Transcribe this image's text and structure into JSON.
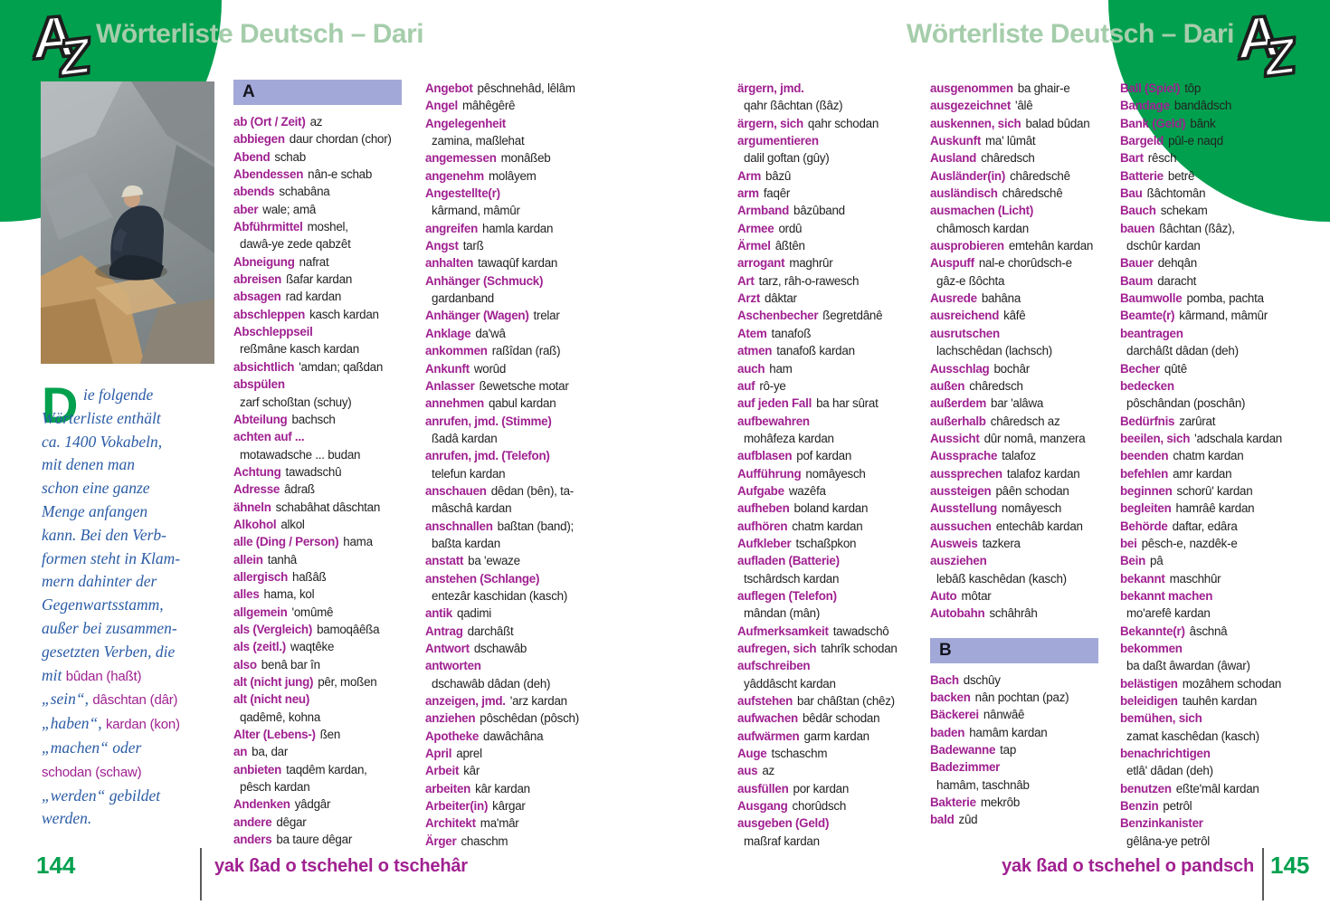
{
  "header": {
    "title": "Wörterliste Deutsch – Dari",
    "logo_top_letter": "A",
    "logo_bottom_letter": "Z"
  },
  "colors": {
    "brand_green": "#00a04e",
    "title_pale_green": "#a5cdab",
    "headword_magenta": "#a02191",
    "section_bar_blue": "#a2a9d8",
    "intro_blue": "#2b5ca6"
  },
  "intro": {
    "drop_cap": "D",
    "lines": [
      [
        {
          "t": "ie folgende",
          "s": "it"
        }
      ],
      [
        {
          "t": "Wörterliste enthält",
          "s": "it"
        }
      ],
      [
        {
          "t": "ca. 1400 Vokabeln,",
          "s": "it"
        }
      ],
      [
        {
          "t": "mit denen man",
          "s": "it"
        }
      ],
      [
        {
          "t": "schon eine ganze",
          "s": "it"
        }
      ],
      [
        {
          "t": "Menge anfangen",
          "s": "it"
        }
      ],
      [
        {
          "t": "kann. Bei den Verb-",
          "s": "it"
        }
      ],
      [
        {
          "t": "formen steht in Klam-",
          "s": "it"
        }
      ],
      [
        {
          "t": "mern dahinter der",
          "s": "it"
        }
      ],
      [
        {
          "t": "Gegenwartsstamm,",
          "s": "it"
        }
      ],
      [
        {
          "t": "außer bei zusammen-",
          "s": "it"
        }
      ],
      [
        {
          "t": "gesetzten Verben, die",
          "s": "it"
        }
      ],
      [
        {
          "t": "mit ",
          "s": "it"
        },
        {
          "t": "bûdan (haßt)",
          "s": "ma"
        }
      ],
      [
        {
          "t": "„sein“, ",
          "s": "it"
        },
        {
          "t": "dâschtan (dâr)",
          "s": "ma"
        }
      ],
      [
        {
          "t": "„haben“, ",
          "s": "it"
        },
        {
          "t": "kardan (kon)",
          "s": "ma"
        }
      ],
      [
        {
          "t": "„machen“ oder",
          "s": "it"
        }
      ],
      [
        {
          "t": "schodan (schaw)",
          "s": "ma"
        }
      ],
      [
        {
          "t": "„werden“ gebildet",
          "s": "it"
        }
      ],
      [
        {
          "t": "werden.",
          "s": "it"
        }
      ]
    ]
  },
  "columns": [
    {
      "lines": [
        {
          "s": "A"
        },
        {
          "h": "ab (Ort / Zeit)",
          "t": "az"
        },
        {
          "h": "abbiegen",
          "t": "daur chordan (chor)"
        },
        {
          "h": "Abend",
          "t": "schab"
        },
        {
          "h": "Abendessen",
          "t": "nân-e schab"
        },
        {
          "h": "abends",
          "t": "schabâna"
        },
        {
          "h": "aber",
          "t": "wale; amâ"
        },
        {
          "h": "Abführmittel",
          "t": "moshel,"
        },
        {
          "c": "dawâ-ye zede qabzêt"
        },
        {
          "h": "Abneigung",
          "t": "nafrat"
        },
        {
          "h": "abreisen",
          "t": "ßafar kardan"
        },
        {
          "h": "absagen",
          "t": "rad kardan"
        },
        {
          "h": "abschleppen",
          "t": "kasch kardan"
        },
        {
          "h": "Abschleppseil"
        },
        {
          "c": "reßmâne kasch kardan"
        },
        {
          "h": "absichtlich",
          "t": "'amdan; qaßdan"
        },
        {
          "h": "abspülen"
        },
        {
          "c": "zarf schoßtan (schuy)"
        },
        {
          "h": "Abteilung",
          "t": "bachsch"
        },
        {
          "h": "achten auf ..."
        },
        {
          "c": "motawadsche ... budan"
        },
        {
          "h": "Achtung",
          "t": "tawadschû"
        },
        {
          "h": "Adresse",
          "t": "âdraß"
        },
        {
          "h": "ähneln",
          "t": "schabâhat dâschtan"
        },
        {
          "h": "Alkohol",
          "t": "alkol"
        },
        {
          "h": "alle (Ding / Person)",
          "t": "hama"
        },
        {
          "h": "allein",
          "t": "tanhâ"
        },
        {
          "h": "allergisch",
          "t": "haßâß"
        },
        {
          "h": "alles",
          "t": "hama, kol"
        },
        {
          "h": "allgemein",
          "t": "'omûmê"
        },
        {
          "h": "als (Vergleich)",
          "t": "bamoqâêßa"
        },
        {
          "h": "als (zeitl.)",
          "t": "waqtêke"
        },
        {
          "h": "also",
          "t": "benâ bar în"
        },
        {
          "h": "alt (nicht jung)",
          "t": "pêr, moßen"
        },
        {
          "h": "alt (nicht neu)"
        },
        {
          "c": "qadêmê, kohna"
        },
        {
          "h": "Alter (Lebens-)",
          "t": "ßen"
        },
        {
          "h": "an",
          "t": "ba, dar"
        },
        {
          "h": "anbieten",
          "t": "taqdêm kardan,"
        },
        {
          "c": "pêsch kardan"
        },
        {
          "h": "Andenken",
          "t": "yâdgâr"
        },
        {
          "h": "andere",
          "t": "dêgar"
        },
        {
          "h": "anders",
          "t": "ba taure dêgar"
        }
      ]
    },
    {
      "lines": [
        {
          "h": "Angebot",
          "t": "pêschnehâd, lêlâm"
        },
        {
          "h": "Angel",
          "t": "mâhêgêrê"
        },
        {
          "h": "Angelegenheit"
        },
        {
          "c": "zamina, maßlehat"
        },
        {
          "h": "angemessen",
          "t": "monâßeb"
        },
        {
          "h": "angenehm",
          "t": "molâyem"
        },
        {
          "h": "Angestellte(r)"
        },
        {
          "c": "kârmand, mâmûr"
        },
        {
          "h": "angreifen",
          "t": "hamla kardan"
        },
        {
          "h": "Angst",
          "t": "tarß"
        },
        {
          "h": "anhalten",
          "t": "tawaqûf kardan"
        },
        {
          "h": "Anhänger (Schmuck)"
        },
        {
          "c": "gardanband"
        },
        {
          "h": "Anhänger (Wagen)",
          "t": "trelar"
        },
        {
          "h": "Anklage",
          "t": "da'wâ"
        },
        {
          "h": "ankommen",
          "t": "raßîdan (raß)"
        },
        {
          "h": "Ankunft",
          "t": "worûd"
        },
        {
          "h": "Anlasser",
          "t": "ßewetsche motar"
        },
        {
          "h": "annehmen",
          "t": "qabul kardan"
        },
        {
          "h": "anrufen, jmd. (Stimme)"
        },
        {
          "c": "ßadâ kardan"
        },
        {
          "h": "anrufen, jmd. (Telefon)"
        },
        {
          "c": "telefun kardan"
        },
        {
          "h": "anschauen",
          "t": "dêdan (bên), ta-"
        },
        {
          "c": "mâschâ kardan"
        },
        {
          "h": "anschnallen",
          "t": "baßtan (band);"
        },
        {
          "c": "baßta kardan"
        },
        {
          "h": "anstatt",
          "t": "ba 'ewaze"
        },
        {
          "h": "anstehen (Schlange)"
        },
        {
          "c": "entezâr kaschidan (kasch)"
        },
        {
          "h": "antik",
          "t": "qadimi"
        },
        {
          "h": "Antrag",
          "t": "darchâßt"
        },
        {
          "h": "Antwort",
          "t": "dschawâb"
        },
        {
          "h": "antworten"
        },
        {
          "c": "dschawâb dâdan (deh)"
        },
        {
          "h": "anzeigen, jmd.",
          "t": "'arz kardan"
        },
        {
          "h": "anziehen",
          "t": "pôschêdan (pôsch)"
        },
        {
          "h": "Apotheke",
          "t": "dawâchâna"
        },
        {
          "h": "April",
          "t": "aprel"
        },
        {
          "h": "Arbeit",
          "t": "kâr"
        },
        {
          "h": "arbeiten",
          "t": "kâr kardan"
        },
        {
          "h": "Arbeiter(in)",
          "t": "kârgar"
        },
        {
          "h": "Architekt",
          "t": "ma'mâr"
        },
        {
          "h": "Ärger",
          "t": "chaschm"
        }
      ]
    },
    {
      "lines": [
        {
          "h": "ärgern, jmd."
        },
        {
          "c": "qahr ßâchtan (ßâz)"
        },
        {
          "h": "ärgern, sich",
          "t": "qahr schodan"
        },
        {
          "h": "argumentieren"
        },
        {
          "c": "dalil goftan (gûy)"
        },
        {
          "h": "Arm",
          "t": "bâzû"
        },
        {
          "h": "arm",
          "t": "faqêr"
        },
        {
          "h": "Armband",
          "t": "bâzûband"
        },
        {
          "h": "Armee",
          "t": "ordû"
        },
        {
          "h": "Ärmel",
          "t": "âßtên"
        },
        {
          "h": "arrogant",
          "t": "maghrûr"
        },
        {
          "h": "Art",
          "t": "tarz, râh-o-rawesch"
        },
        {
          "h": "Arzt",
          "t": "dâktar"
        },
        {
          "h": "Aschenbecher",
          "t": "ßegretdânê"
        },
        {
          "h": "Atem",
          "t": "tanafoß"
        },
        {
          "h": "atmen",
          "t": "tanafoß kardan"
        },
        {
          "h": "auch",
          "t": "ham"
        },
        {
          "h": "auf",
          "t": "rô-ye"
        },
        {
          "h": "auf jeden Fall",
          "t": "ba har sûrat"
        },
        {
          "h": "aufbewahren"
        },
        {
          "c": "mohâfeza kardan"
        },
        {
          "h": "aufblasen",
          "t": "pof kardan"
        },
        {
          "h": "Aufführung",
          "t": "nomâyesch"
        },
        {
          "h": "Aufgabe",
          "t": "wazêfa"
        },
        {
          "h": "aufheben",
          "t": "boland kardan"
        },
        {
          "h": "aufhören",
          "t": "chatm kardan"
        },
        {
          "h": "Aufkleber",
          "t": "tschaßpkon"
        },
        {
          "h": "aufladen (Batterie)"
        },
        {
          "c": "tschârdsch kardan"
        },
        {
          "h": "auflegen (Telefon)"
        },
        {
          "c": "mândan (mân)"
        },
        {
          "h": "Aufmerksamkeit",
          "t": "tawadschô"
        },
        {
          "h": "aufregen, sich",
          "t": "tahrîk schodan"
        },
        {
          "h": "aufschreiben"
        },
        {
          "c": "yâddâscht kardan"
        },
        {
          "h": "aufstehen",
          "t": "bar châßtan (chêz)"
        },
        {
          "h": "aufwachen",
          "t": "bêdâr schodan"
        },
        {
          "h": "aufwärmen",
          "t": "garm kardan"
        },
        {
          "h": "Auge",
          "t": "tschaschm"
        },
        {
          "h": "aus",
          "t": "az"
        },
        {
          "h": "ausfüllen",
          "t": "por kardan"
        },
        {
          "h": "Ausgang",
          "t": "chorûdsch"
        },
        {
          "h": "ausgeben (Geld)"
        },
        {
          "c": "maßraf kardan"
        }
      ]
    },
    {
      "lines": [
        {
          "h": "ausgenommen",
          "t": "ba ghair-e"
        },
        {
          "h": "ausgezeichnet",
          "t": "'âlê"
        },
        {
          "h": "auskennen, sich",
          "t": "balad bûdan"
        },
        {
          "h": "Auskunft",
          "t": "ma' lûmât"
        },
        {
          "h": "Ausland",
          "t": "châredsch"
        },
        {
          "h": "Ausländer(in)",
          "t": "châredschê"
        },
        {
          "h": "ausländisch",
          "t": "châredschê"
        },
        {
          "h": "ausmachen (Licht)"
        },
        {
          "c": "châmosch kardan"
        },
        {
          "h": "ausprobieren",
          "t": "emtehân kardan"
        },
        {
          "h": "Auspuff",
          "t": "nal-e chorûdsch-e"
        },
        {
          "c": "gâz-e ßôchta"
        },
        {
          "h": "Ausrede",
          "t": "bahâna"
        },
        {
          "h": "ausreichend",
          "t": "kâfê"
        },
        {
          "h": "ausrutschen"
        },
        {
          "c": "lachschêdan (lachsch)"
        },
        {
          "h": "Ausschlag",
          "t": "bochâr"
        },
        {
          "h": "außen",
          "t": "châredsch"
        },
        {
          "h": "außerdem",
          "t": "bar 'alâwa"
        },
        {
          "h": "außerhalb",
          "t": "châredsch az"
        },
        {
          "h": "Aussicht",
          "t": "dûr nomâ, manzera"
        },
        {
          "h": "Aussprache",
          "t": "talafoz"
        },
        {
          "h": "aussprechen",
          "t": "talafoz kardan"
        },
        {
          "h": "aussteigen",
          "t": "pâên schodan"
        },
        {
          "h": "Ausstellung",
          "t": "nomâyesch"
        },
        {
          "h": "aussuchen",
          "t": "entechâb kardan"
        },
        {
          "h": "Ausweis",
          "t": "tazkera"
        },
        {
          "h": "ausziehen"
        },
        {
          "c": "lebâß kaschêdan (kasch)"
        },
        {
          "h": "Auto",
          "t": "môtar"
        },
        {
          "h": "Autobahn",
          "t": "schâhrâh"
        },
        {
          "g": 1
        },
        {
          "s": "B"
        },
        {
          "h": "Bach",
          "t": "dschûy"
        },
        {
          "h": "backen",
          "t": "nân pochtan (paz)"
        },
        {
          "h": "Bäckerei",
          "t": "nânwâê"
        },
        {
          "h": "baden",
          "t": "hamâm kardan"
        },
        {
          "h": "Badewanne",
          "t": "tap"
        },
        {
          "h": "Badezimmer"
        },
        {
          "c": "hamâm, taschnâb"
        },
        {
          "h": "Bakterie",
          "t": "mekrôb"
        },
        {
          "h": "bald",
          "t": "zûd"
        }
      ]
    },
    {
      "lines": [
        {
          "h": "Ball (Spiel)",
          "t": "tôp"
        },
        {
          "h": "Bandage",
          "t": "bandâdsch"
        },
        {
          "h": "Bank (Geld)",
          "t": "bânk"
        },
        {
          "h": "Bargeld",
          "t": "pûl-e naqd"
        },
        {
          "h": "Bart",
          "t": "rêsch"
        },
        {
          "h": "Batterie",
          "t": "betrê"
        },
        {
          "h": "Bau",
          "t": "ßâchtomân"
        },
        {
          "h": "Bauch",
          "t": "schekam"
        },
        {
          "h": "bauen",
          "t": "ßâchtan (ßâz),"
        },
        {
          "c": "dschûr kardan"
        },
        {
          "h": "Bauer",
          "t": "dehqân"
        },
        {
          "h": "Baum",
          "t": "daracht"
        },
        {
          "h": "Baumwolle",
          "t": "pomba, pachta"
        },
        {
          "h": "Beamte(r)",
          "t": "kârmand, mâmûr"
        },
        {
          "h": "beantragen"
        },
        {
          "c": "darchâßt dâdan (deh)"
        },
        {
          "h": "Becher",
          "t": "qûtê"
        },
        {
          "h": "bedecken"
        },
        {
          "c": "pôschândan (poschân)"
        },
        {
          "h": "Bedürfnis",
          "t": "zarûrat"
        },
        {
          "h": "beeilen, sich",
          "t": "'adschala kardan"
        },
        {
          "h": "beenden",
          "t": "chatm kardan"
        },
        {
          "h": "befehlen",
          "t": "amr kardan"
        },
        {
          "h": "beginnen",
          "t": "schorû' kardan"
        },
        {
          "h": "begleiten",
          "t": "hamrâê kardan"
        },
        {
          "h": "Behörde",
          "t": "daftar, edâra"
        },
        {
          "h": "bei",
          "t": "pêsch-e, nazdêk-e"
        },
        {
          "h": "Bein",
          "t": "pâ"
        },
        {
          "h": "bekannt",
          "t": "maschhûr"
        },
        {
          "h": "bekannt machen"
        },
        {
          "c": "mo'arefê kardan"
        },
        {
          "h": "Bekannte(r)",
          "t": "âschnâ"
        },
        {
          "h": "bekommen"
        },
        {
          "c": "ba daßt âwardan (âwar)"
        },
        {
          "h": "belästigen",
          "t": "mozâhem schodan"
        },
        {
          "h": "beleidigen",
          "t": "tauhên kardan"
        },
        {
          "h": "bemühen, sich"
        },
        {
          "c": "zamat kaschêdan (kasch)"
        },
        {
          "h": "benachrichtigen"
        },
        {
          "c": "etlâ' dâdan (deh)"
        },
        {
          "h": "benutzen",
          "t": "eßte'mâl kardan"
        },
        {
          "h": "Benzin",
          "t": "petrôl"
        },
        {
          "h": "Benzinkanister"
        },
        {
          "c": "gêlâna-ye petrôl"
        }
      ]
    }
  ],
  "footer": {
    "left_page_number": "144",
    "left_text": "yak ßad o tschehel o tschehâr",
    "right_text": "yak ßad o tschehel o pandsch",
    "right_page_number": "145"
  }
}
